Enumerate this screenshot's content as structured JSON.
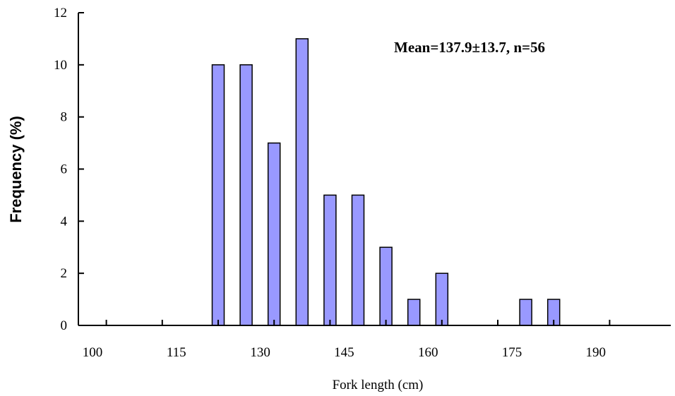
{
  "chart_data": {
    "type": "bar",
    "x": [
      125,
      130,
      135,
      140,
      145,
      150,
      155,
      160,
      165,
      180,
      185
    ],
    "values": [
      10,
      10,
      7,
      11,
      5,
      5,
      3,
      1,
      2,
      1,
      1
    ],
    "xlabel": "Fork length (cm)",
    "ylabel": "Frequency (%)",
    "xlim": [
      100,
      200
    ],
    "ylim": [
      0,
      12
    ],
    "x_ticks": [
      100,
      115,
      130,
      145,
      160,
      175,
      190
    ],
    "y_ticks": [
      0,
      2,
      4,
      6,
      8,
      10,
      12
    ],
    "annotation": "Mean=137.9±13.7, n=56",
    "grid": false,
    "bar_color": "#9999ff",
    "bar_edge_color": "#000000"
  }
}
